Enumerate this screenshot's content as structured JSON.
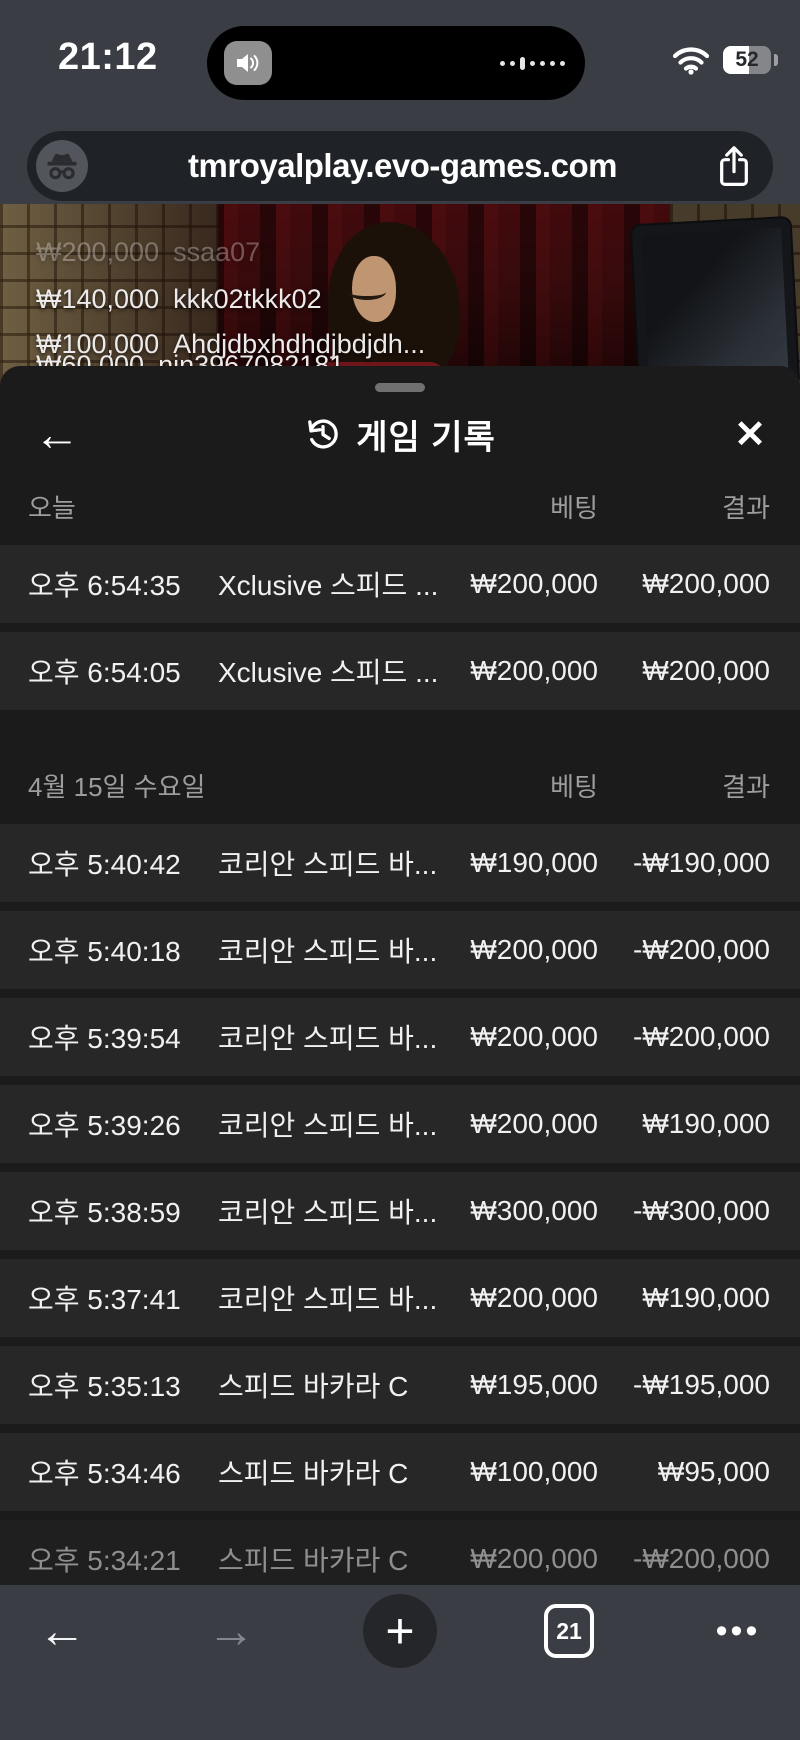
{
  "status_bar": {
    "time": "21:12",
    "battery_level": "52"
  },
  "address_bar": {
    "url": "tmroyalplay.evo-games.com"
  },
  "video_overlay": {
    "chat_messages": [
      {
        "amount": "₩200,000",
        "user": "ssaa07",
        "faded": true
      },
      {
        "amount": "₩140,000",
        "user": "kkk02tkkk02",
        "faded": false
      },
      {
        "amount": "₩100,000",
        "user": "Ahdjdbxhdhdjbdjdh...",
        "faded": false
      },
      {
        "amount": "₩60,000",
        "user": "nin3967082181",
        "faded": false
      }
    ]
  },
  "modal": {
    "title": "게임 기록",
    "sections": [
      {
        "label": "오늘",
        "bet_header": "베팅",
        "result_header": "결과",
        "rows": [
          {
            "time": "오후 6:54:35",
            "game": "Xclusive 스피드 ...",
            "bet": "₩200,000",
            "result": "₩200,000"
          },
          {
            "time": "오후 6:54:05",
            "game": "Xclusive 스피드 ...",
            "bet": "₩200,000",
            "result": "₩200,000"
          }
        ]
      },
      {
        "label": "4월 15일 수요일",
        "bet_header": "베팅",
        "result_header": "결과",
        "rows": [
          {
            "time": "오후 5:40:42",
            "game": "코리안 스피드 바...",
            "bet": "₩190,000",
            "result": "-₩190,000"
          },
          {
            "time": "오후 5:40:18",
            "game": "코리안 스피드 바...",
            "bet": "₩200,000",
            "result": "-₩200,000"
          },
          {
            "time": "오후 5:39:54",
            "game": "코리안 스피드 바...",
            "bet": "₩200,000",
            "result": "-₩200,000"
          },
          {
            "time": "오후 5:39:26",
            "game": "코리안 스피드 바...",
            "bet": "₩200,000",
            "result": "₩190,000"
          },
          {
            "time": "오후 5:38:59",
            "game": "코리안 스피드 바...",
            "bet": "₩300,000",
            "result": "-₩300,000"
          },
          {
            "time": "오후 5:37:41",
            "game": "코리안 스피드 바...",
            "bet": "₩200,000",
            "result": "₩190,000"
          },
          {
            "time": "오후 5:35:13",
            "game": "스피드 바카라 C",
            "bet": "₩195,000",
            "result": "-₩195,000"
          },
          {
            "time": "오후 5:34:46",
            "game": "스피드 바카라 C",
            "bet": "₩100,000",
            "result": "₩95,000"
          },
          {
            "time": "오후 5:34:21",
            "game": "스피드 바카라 C",
            "bet": "₩200,000",
            "result": "-₩200,000",
            "dimmed": true
          }
        ]
      }
    ]
  },
  "toolbar": {
    "tab_count": "21"
  },
  "icons": {
    "modal_back": "←",
    "close": "✕",
    "back_arrow": "←",
    "forward_arrow": "→",
    "new_tab": "+",
    "menu_dots": "•••"
  },
  "colors": {
    "chrome_bg": "#3a3d43",
    "url_pill_bg": "#1f2226",
    "modal_bg": "#1b1b1b",
    "row_bg": "#272727",
    "row_text": "#f1f1f1",
    "muted_text": "#9d9d9d"
  }
}
